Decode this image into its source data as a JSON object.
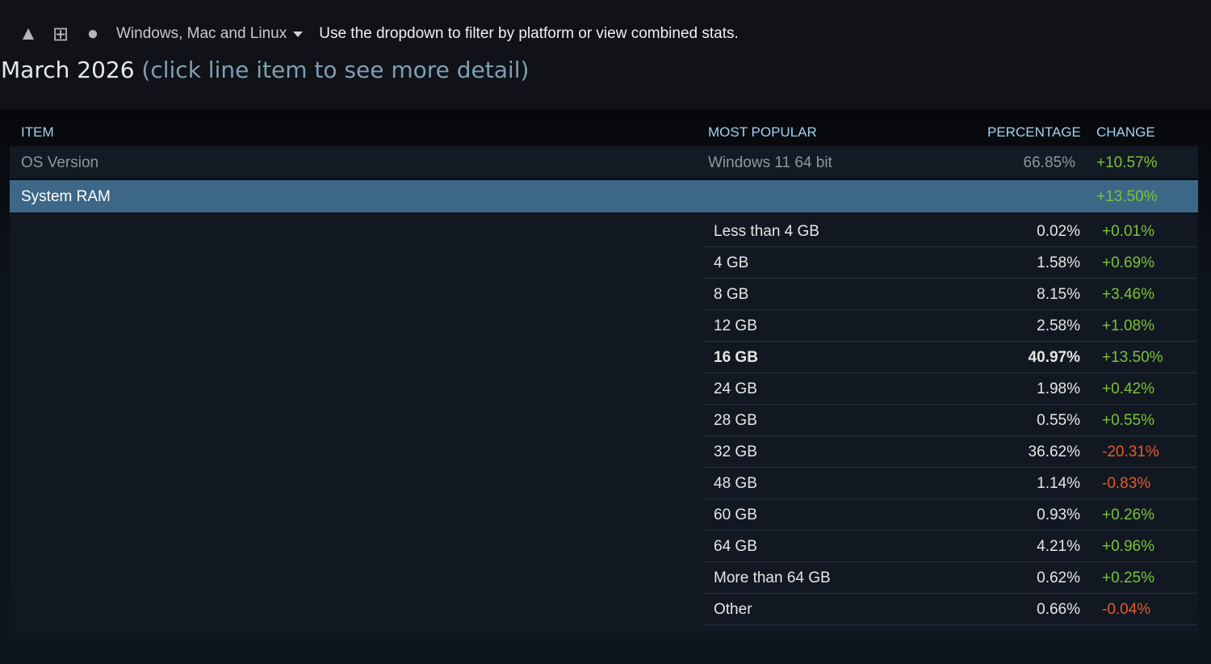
{
  "platform_filter": {
    "icons": [
      "linux-icon",
      "windows-icon",
      "apple-icon"
    ],
    "selected": "Windows, Mac and Linux",
    "hint": "Use the dropdown to filter by platform or view combined stats."
  },
  "heading": {
    "month": "March 2026",
    "subtitle": "(click line item to see more detail)"
  },
  "table": {
    "headers": {
      "item": "ITEM",
      "most_popular": "MOST POPULAR",
      "percentage": "PERCENTAGE",
      "change": "CHANGE"
    },
    "rows": [
      {
        "item": "OS Version",
        "most_popular": "Windows 11 64 bit",
        "percentage": "66.85%",
        "change": "+10.57%"
      },
      {
        "item": "System RAM",
        "most_popular": "",
        "percentage": "",
        "change": "+13.50%",
        "expanded": true
      }
    ],
    "details": [
      {
        "label": "Less than 4 GB",
        "percentage": "0.02%",
        "change": "+0.01%"
      },
      {
        "label": "4 GB",
        "percentage": "1.58%",
        "change": "+0.69%"
      },
      {
        "label": "8 GB",
        "percentage": "8.15%",
        "change": "+3.46%"
      },
      {
        "label": "12 GB",
        "percentage": "2.58%",
        "change": "+1.08%"
      },
      {
        "label": "16 GB",
        "percentage": "40.97%",
        "change": "+13.50%",
        "highlight": true
      },
      {
        "label": "24 GB",
        "percentage": "1.98%",
        "change": "+0.42%"
      },
      {
        "label": "28 GB",
        "percentage": "0.55%",
        "change": "+0.55%"
      },
      {
        "label": "32 GB",
        "percentage": "36.62%",
        "change": "-20.31%"
      },
      {
        "label": "48 GB",
        "percentage": "1.14%",
        "change": "-0.83%"
      },
      {
        "label": "60 GB",
        "percentage": "0.93%",
        "change": "+0.26%"
      },
      {
        "label": "64 GB",
        "percentage": "4.21%",
        "change": "+0.96%"
      },
      {
        "label": "More than 64 GB",
        "percentage": "0.62%",
        "change": "+0.25%"
      },
      {
        "label": "Other",
        "percentage": "0.66%",
        "change": "-0.04%"
      }
    ]
  },
  "colors": {
    "positive": "#7cc23a",
    "negative": "#e55a2c",
    "selected_row": "#3d6786",
    "header_text": "#9fd2f2"
  }
}
